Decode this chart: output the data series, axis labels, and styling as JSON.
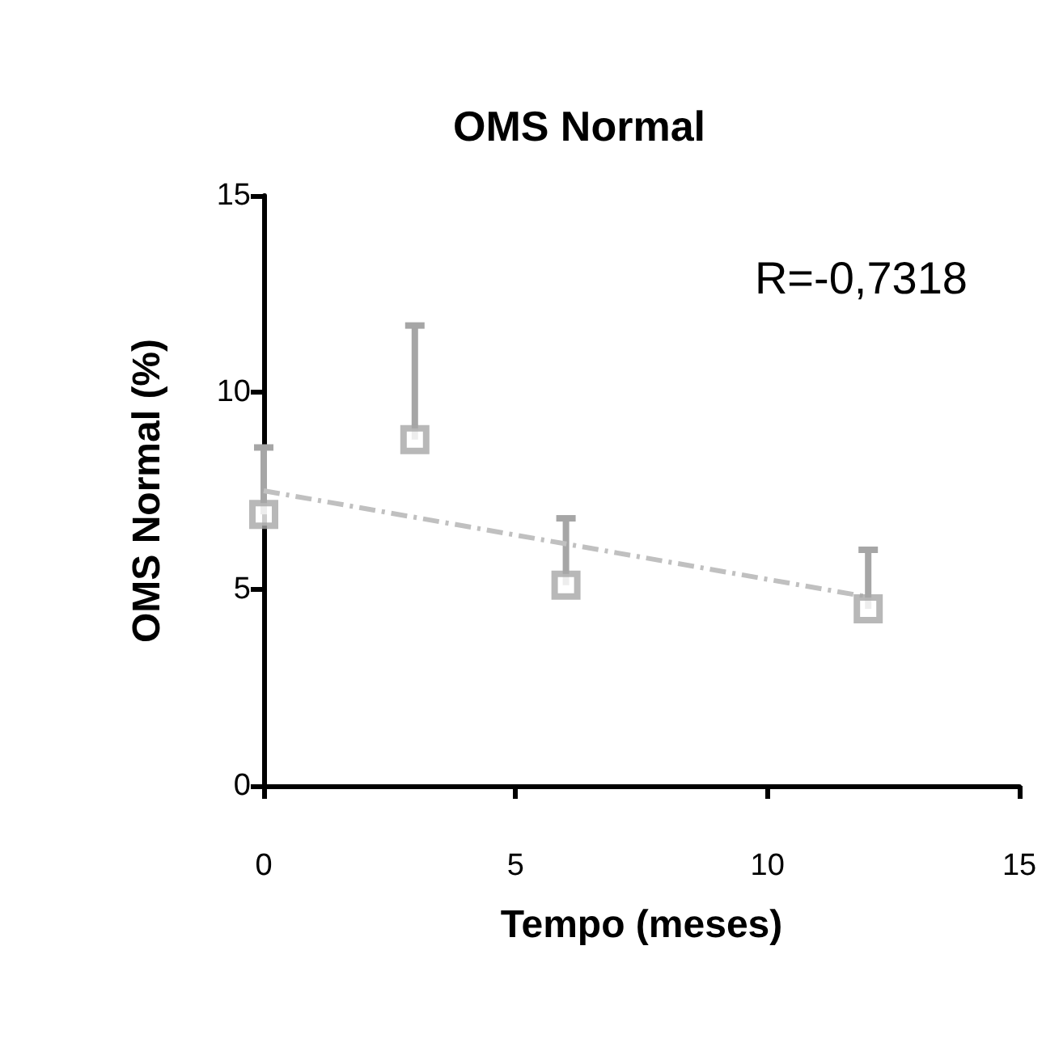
{
  "chart_data": {
    "type": "scatter",
    "title": "OMS Normal",
    "xlabel": "Tempo (meses)",
    "ylabel": "OMS Normal (%)",
    "annotations": [
      "R=-0,7318"
    ],
    "x": [
      0,
      3,
      6,
      12
    ],
    "series": [
      {
        "color": "#a6a6a6",
        "values": [
          6.9,
          8.8,
          5.1,
          4.5
        ],
        "errors": [
          [
            6.9,
            8.6
          ],
          [
            8.8,
            11.7
          ],
          [
            5.1,
            6.8
          ],
          [
            4.5,
            6.0
          ]
        ],
        "marker": "square"
      },
      {
        "type": "line",
        "color": "#c0c0c0",
        "x": [
          0,
          12
        ],
        "values": [
          7.5,
          4.8
        ],
        "line_style": "dashed",
        "marker": "none"
      }
    ],
    "xlim": [
      0,
      15
    ],
    "xticks": [
      0,
      5,
      10,
      15
    ],
    "ylim": [
      0,
      15
    ],
    "yticks": [
      0,
      5,
      10,
      15
    ],
    "grid": false
  }
}
